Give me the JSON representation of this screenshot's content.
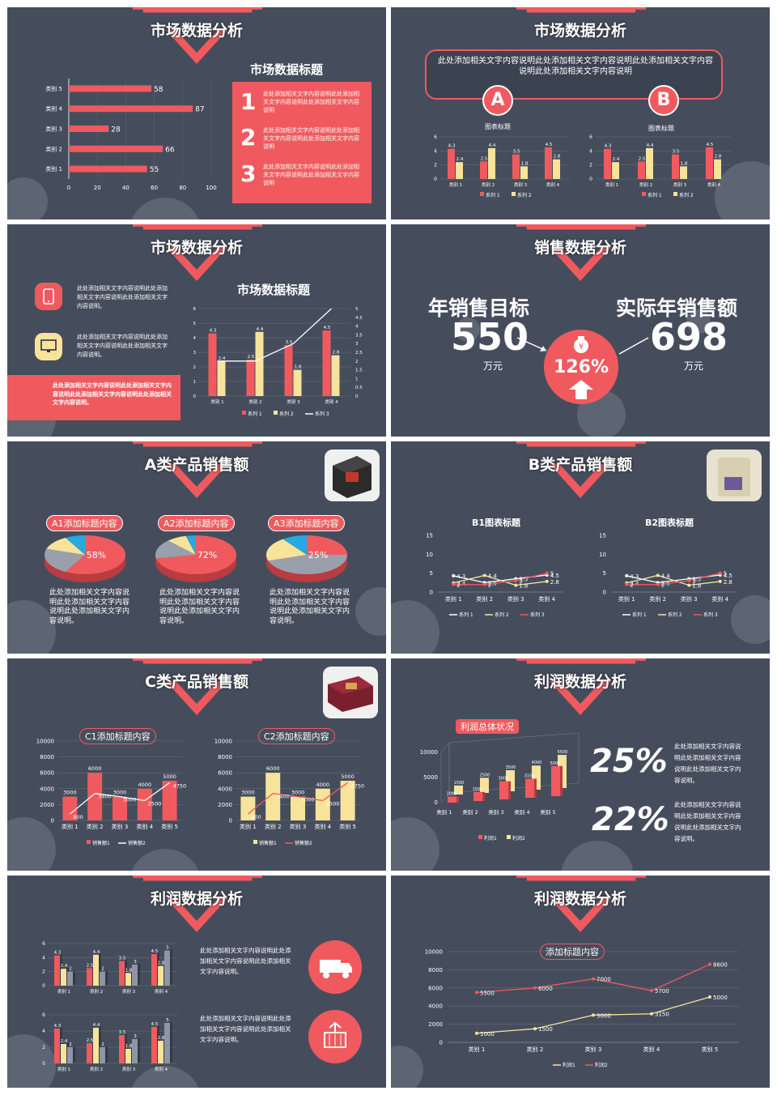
{
  "colors": {
    "bg": "#454d5d",
    "red": "#f05a5e",
    "yellow": "#f7e39a",
    "white": "#ffffff",
    "gray": "#9aa0ab",
    "cyan": "#27a9e1"
  },
  "s1": {
    "title": "市场数据分析",
    "panel_title": "市场数据标题",
    "items": [
      {
        "num": "1",
        "text": "此处添加相关文字内容说明此处添加相关文字内容说明此处添加相关文字内容说明"
      },
      {
        "num": "2",
        "text": "此处添加相关文字内容说明此处添加相关文字内容说明此处添加相关文字内容说明"
      },
      {
        "num": "3",
        "text": "此处添加相关文字内容说明此处添加相关文字内容说明此处添加相关文字内容说明"
      }
    ]
  },
  "s2": {
    "title": "市场数据分析",
    "intro": "此处添加相关文字内容说明此处添加相关文字内容说明此处添加相关文字内容说明此处添加相关文字内容说明",
    "badge_a": "A",
    "badge_b": "B",
    "chart_a_title": "图表标题",
    "chart_b_title": "图表标题"
  },
  "s3": {
    "title": "市场数据分析",
    "chart_title": "市场数据标题",
    "text1": "此处添加相关文字内容说明此处添加相关文字内容说明此处添加相关文字内容说明。",
    "text2": "此处添加相关文字内容说明此处添加相关文字内容说明此处添加相关文字内容说明。",
    "text3": "此处添加相关文字内容说明此处添加相关文字内容说明此处添加相关文字内容说明此处添加相关文字内容说明。"
  },
  "s4": {
    "title": "销售数据分析",
    "left_label": "年销售目标",
    "left_value": "550",
    "left_unit": "万元",
    "right_label": "实际年销售额",
    "right_value": "698",
    "right_unit": "万元",
    "percent": "126%"
  },
  "s5": {
    "title": "A类产品销售额",
    "heads": [
      "A1添加标题内容",
      "A2添加标题内容",
      "A3添加标题内容"
    ],
    "pcts": [
      "58%",
      "72%",
      "25%"
    ],
    "desc": "此处添加相关文字内容说明此处添加相关文字内容说明此处添加相关文字内容说明。"
  },
  "s6": {
    "title": "B类产品销售额",
    "chart1_title": "B1图表标题",
    "chart2_title": "B2图表标题"
  },
  "s7": {
    "title": "C类产品销售额",
    "head1": "C1添加标题内容",
    "head2": "C2添加标题内容"
  },
  "s8": {
    "title": "利润数据分析",
    "head": "利润总体状况",
    "p1": "25%",
    "p2": "22%",
    "t1": "此处添加相关文字内容说明此处添加相关文字内容说明此处添加相关文字内容说明。",
    "t2": "此处添加相关文字内容说明此处添加相关文字内容说明此处添加相关文字内容说明。"
  },
  "s9": {
    "title": "利润数据分析",
    "t1": "此处添加相关文字内容说明此处添加相关文字内容说明此处添加相关文字内容说明。",
    "t2": "此处添加相关文字内容说明此处添加相关文字内容说明此处添加相关文字内容说明。"
  },
  "s10": {
    "title": "利润数据分析",
    "head": "添加标题内容"
  },
  "chart_data": [
    {
      "id": "s1-hbar",
      "type": "bar",
      "orientation": "horizontal",
      "categories": [
        "类别 1",
        "类别 2",
        "类别 3",
        "类别 4",
        "类别 5"
      ],
      "values": [
        55,
        66,
        28,
        87,
        58
      ],
      "xlim": [
        0,
        100
      ],
      "xticks": [
        "0",
        "20",
        "40",
        "60",
        "80",
        "100"
      ]
    },
    {
      "id": "s2-a",
      "type": "bar",
      "categories": [
        "类别 1",
        "类别 2",
        "类别 3",
        "类别 4"
      ],
      "series": [
        {
          "name": "系列 1",
          "values": [
            4.3,
            2.5,
            3.5,
            4.5
          ]
        },
        {
          "name": "系列 2",
          "values": [
            2.4,
            4.4,
            1.8,
            2.8
          ]
        }
      ],
      "ylim": [
        0,
        6
      ],
      "yticks": [
        "0",
        "2",
        "4",
        "6"
      ]
    },
    {
      "id": "s2-b",
      "type": "bar",
      "categories": [
        "类别 1",
        "类别 2",
        "类别 3",
        "类别 4"
      ],
      "series": [
        {
          "name": "系列 1",
          "values": [
            4.3,
            2.5,
            3.5,
            4.5
          ]
        },
        {
          "name": "系列 2",
          "values": [
            2.4,
            4.4,
            1.8,
            2.8
          ]
        }
      ],
      "ylim": [
        0,
        6
      ],
      "yticks": [
        "0",
        "2",
        "4",
        "6"
      ]
    },
    {
      "id": "s3-combo",
      "type": "bar",
      "categories": [
        "类别 1",
        "类别 2",
        "类别 3",
        "类别 4"
      ],
      "series": [
        {
          "name": "系列 1",
          "values": [
            4.3,
            2.5,
            3.5,
            4.5
          ]
        },
        {
          "name": "系列 2",
          "values": [
            2.4,
            4.4,
            1.8,
            2.8
          ]
        },
        {
          "name": "系列 3",
          "values": [
            2,
            2,
            3,
            5
          ]
        }
      ],
      "ylim": [
        0,
        6
      ],
      "yticks": [
        "0",
        "1",
        "2",
        "3",
        "4",
        "5",
        "6"
      ],
      "y2ticks": [
        "0",
        "0.5",
        "1",
        "1.5",
        "2",
        "2.5",
        "3",
        "3.5",
        "4",
        "4.5",
        "5"
      ]
    },
    {
      "id": "s5-pies",
      "type": "pie",
      "values": [
        [
          58,
          22,
          12,
          8
        ],
        [
          72,
          16,
          8,
          4
        ],
        [
          25,
          45,
          20,
          10
        ]
      ]
    },
    {
      "id": "s6-b1",
      "type": "line",
      "categories": [
        "类别 1",
        "类别 2",
        "类别 3",
        "类别 4"
      ],
      "series": [
        {
          "name": "系列 1",
          "values": [
            4.3,
            2.5,
            3.5,
            4.5
          ]
        },
        {
          "name": "系列 2",
          "values": [
            2.4,
            4.4,
            1.8,
            2.8
          ]
        },
        {
          "name": "系列 3",
          "values": [
            2,
            2,
            3,
            5
          ]
        }
      ],
      "ylim": [
        0,
        15
      ],
      "yticks": [
        "0",
        "5",
        "10",
        "15"
      ]
    },
    {
      "id": "s6-b2",
      "type": "line",
      "categories": [
        "类别 1",
        "类别 2",
        "类别 3",
        "类别 4"
      ],
      "series": [
        {
          "name": "系列 1",
          "values": [
            4.3,
            2.5,
            3.5,
            4.5
          ]
        },
        {
          "name": "系列 2",
          "values": [
            2.4,
            4.4,
            1.8,
            2.8
          ]
        },
        {
          "name": "系列 3",
          "values": [
            2,
            2,
            3,
            5
          ]
        }
      ],
      "ylim": [
        0,
        15
      ],
      "yticks": [
        "0",
        "5",
        "10",
        "15"
      ]
    },
    {
      "id": "s7-c1",
      "type": "bar",
      "categories": [
        "类别 1",
        "类别 2",
        "类别 3",
        "类别 4",
        "类别 5"
      ],
      "series": [
        {
          "name": "销售额1",
          "values": [
            3000,
            6000,
            3000,
            4000,
            5000
          ]
        },
        {
          "name": "销售额2",
          "values": [
            800,
            3400,
            3000,
            2500,
            4750
          ]
        }
      ],
      "ylim": [
        0,
        10000
      ],
      "yticks": [
        "0",
        "2000",
        "4000",
        "6000",
        "8000",
        "10000"
      ]
    },
    {
      "id": "s7-c2",
      "type": "bar",
      "categories": [
        "类别 1",
        "类别 2",
        "类别 3",
        "类别 4",
        "类别 5"
      ],
      "series": [
        {
          "name": "销售额1",
          "values": [
            3000,
            6000,
            3000,
            4000,
            5000
          ]
        },
        {
          "name": "销售额2",
          "values": [
            800,
            3400,
            3000,
            2500,
            4750
          ]
        }
      ],
      "ylim": [
        0,
        10000
      ],
      "yticks": [
        "0",
        "2000",
        "4000",
        "6000",
        "8000",
        "10000"
      ]
    },
    {
      "id": "s8-3d",
      "type": "bar",
      "categories": [
        "类别 1",
        "类别 2",
        "类别 3",
        "类别 4",
        "类别 5"
      ],
      "series": [
        {
          "name": "利润1",
          "values": [
            1000,
            1500,
            3000,
            3150,
            5000
          ]
        },
        {
          "name": "利润2",
          "values": [
            1500,
            2500,
            3500,
            4000,
            5500
          ]
        }
      ],
      "ylim": [
        0,
        10000
      ],
      "yticks": [
        "0",
        "5000",
        "10000"
      ]
    },
    {
      "id": "s9-a",
      "type": "bar",
      "categories": [
        "类别 1",
        "类别 2",
        "类别 3",
        "类别 4"
      ],
      "series": [
        {
          "name": "系列 1",
          "values": [
            4.3,
            2.5,
            3.5,
            4.5
          ]
        },
        {
          "name": "系列 2",
          "values": [
            2.4,
            4.4,
            1.8,
            2.8
          ]
        },
        {
          "name": "系列 3",
          "values": [
            2,
            2,
            3,
            5
          ]
        }
      ],
      "ylim": [
        0,
        6
      ],
      "yticks": [
        "0",
        "2",
        "4",
        "6"
      ]
    },
    {
      "id": "s9-b",
      "type": "bar",
      "categories": [
        "类别 1",
        "类别 2",
        "类别 3",
        "类别 4"
      ],
      "series": [
        {
          "name": "系列 1",
          "values": [
            4.3,
            2.5,
            3.5,
            4.5
          ]
        },
        {
          "name": "系列 2",
          "values": [
            2.4,
            4.4,
            1.8,
            2.8
          ]
        },
        {
          "name": "系列 3",
          "values": [
            2,
            2,
            3,
            5
          ]
        }
      ],
      "ylim": [
        0,
        6
      ],
      "yticks": [
        "0",
        "2",
        "4",
        "6"
      ]
    },
    {
      "id": "s10-line",
      "type": "line",
      "categories": [
        "类别 1",
        "类别 2",
        "类别 3",
        "类别 4",
        "类别 5"
      ],
      "series": [
        {
          "name": "利润1",
          "values": [
            1000,
            1500,
            3000,
            3150,
            5000
          ]
        },
        {
          "name": "利润2",
          "values": [
            5500,
            6000,
            7000,
            5700,
            8600
          ]
        }
      ],
      "ylim": [
        0,
        10000
      ],
      "yticks": [
        "0",
        "2000",
        "4000",
        "6000",
        "8000",
        "10000"
      ]
    }
  ]
}
